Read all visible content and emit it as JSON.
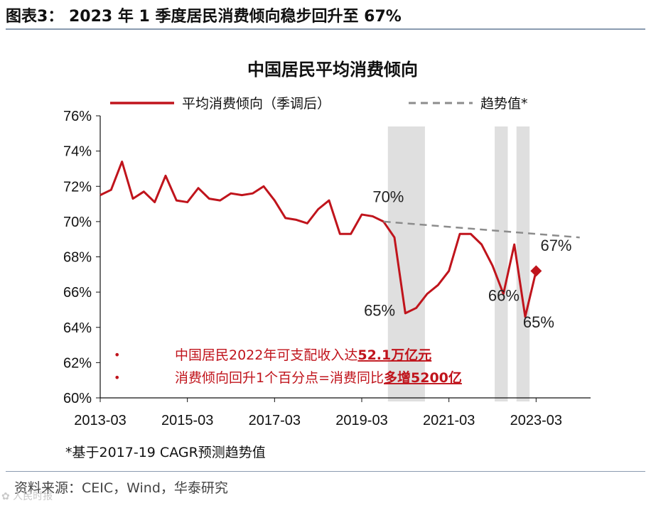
{
  "figure": {
    "title": "图表3： 2023 年 1 季度居民消费倾向稳步回升至 67%",
    "footnote": "*基于2017-19 CAGR预测趋势值",
    "source": "资料来源：CEIC，Wind，华泰研究",
    "watermark": "✿ 人民时报"
  },
  "chart_data": {
    "type": "line",
    "title": "中国居民平均消费倾向",
    "xlabel": "",
    "ylabel": "",
    "ylim": [
      60,
      76
    ],
    "yticks": [
      "60%",
      "62%",
      "64%",
      "66%",
      "68%",
      "70%",
      "72%",
      "74%",
      "76%"
    ],
    "ytick_values": [
      60,
      62,
      64,
      66,
      68,
      70,
      72,
      74,
      76
    ],
    "xlim": [
      2013.0,
      2024.25
    ],
    "xtick_labels": [
      "2013-03",
      "2015-03",
      "2017-03",
      "2019-03",
      "2021-03",
      "2023-03"
    ],
    "xtick_values": [
      2013.0,
      2015.0,
      2017.0,
      2019.0,
      2021.0,
      2023.0
    ],
    "series": [
      {
        "name": "平均消费倾向（季调后）",
        "color": "#c0141c",
        "style": "solid",
        "x": [
          2013.0,
          2013.25,
          2013.5,
          2013.75,
          2014.0,
          2014.25,
          2014.5,
          2014.75,
          2015.0,
          2015.25,
          2015.5,
          2015.75,
          2016.0,
          2016.25,
          2016.5,
          2016.75,
          2017.0,
          2017.25,
          2017.5,
          2017.75,
          2018.0,
          2018.25,
          2018.5,
          2018.75,
          2019.0,
          2019.25,
          2019.5,
          2019.75,
          2020.0,
          2020.25,
          2020.5,
          2020.75,
          2021.0,
          2021.25,
          2021.5,
          2021.75,
          2022.0,
          2022.25,
          2022.5,
          2022.75,
          2023.0
        ],
        "values": [
          71.5,
          71.8,
          73.4,
          71.3,
          71.7,
          71.1,
          72.6,
          71.2,
          71.1,
          71.9,
          71.3,
          71.2,
          71.6,
          71.5,
          71.6,
          72.0,
          71.2,
          70.2,
          70.1,
          69.9,
          70.7,
          71.2,
          69.3,
          69.3,
          70.4,
          70.3,
          70.0,
          69.1,
          64.8,
          65.1,
          65.9,
          66.4,
          67.2,
          69.3,
          69.3,
          68.7,
          67.5,
          65.9,
          68.7,
          64.6,
          67.2
        ]
      },
      {
        "name": "趋势值*",
        "color": "#8c8c8c",
        "style": "dashed",
        "x": [
          2019.5,
          2024.0
        ],
        "values": [
          70.0,
          69.1
        ]
      }
    ],
    "highlight_point": {
      "x": 2023.0,
      "value": 67.2,
      "color": "#c0141c",
      "marker": "diamond"
    },
    "shaded_periods": [
      {
        "start": 2019.6,
        "end": 2020.45
      },
      {
        "start": 2022.05,
        "end": 2022.35
      },
      {
        "start": 2022.55,
        "end": 2022.85
      }
    ],
    "annotations": [
      {
        "text": "70%",
        "x": 2019.25,
        "y": 71.1
      },
      {
        "text": "65%",
        "x": 2019.05,
        "y": 64.65
      },
      {
        "text": "66%",
        "x": 2021.9,
        "y": 65.5
      },
      {
        "text": "65%",
        "x": 2022.7,
        "y": 64.0
      },
      {
        "text": "67%",
        "x": 2023.1,
        "y": 68.35
      }
    ],
    "notes": [
      {
        "bullet": "•",
        "prefix": "中国居民2022年可支配收入达",
        "emphasis": "52.1万亿元"
      },
      {
        "bullet": "•",
        "prefix": "消费倾向回升1个百分点=消费同比",
        "emphasis": "多增5200亿"
      }
    ],
    "legend_position": "top"
  }
}
